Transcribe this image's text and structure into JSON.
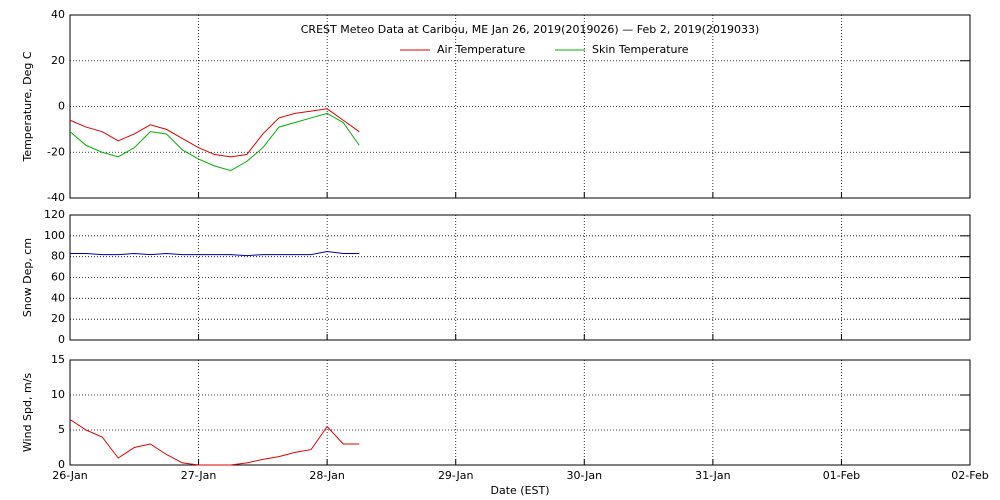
{
  "chart_data": [
    {
      "type": "line",
      "title": "CREST Meteo Data at Caribou, ME   Jan 26, 2019(2019026) — Feb  2, 2019(2019033)",
      "ylabel": "Temperature, Deg C",
      "x": [
        0,
        0.125,
        0.25,
        0.375,
        0.5,
        0.625,
        0.75,
        0.875,
        1.0,
        1.125,
        1.25,
        1.375,
        1.5,
        1.625,
        1.75,
        1.875,
        2.0,
        2.125,
        2.25
      ],
      "series": [
        {
          "name": "Air Temperature",
          "color": "#e00000",
          "values": [
            -6,
            -9,
            -11,
            -15,
            -12,
            -8,
            -10,
            -14,
            -18,
            -21,
            -22,
            -21,
            -12,
            -5,
            -3,
            -2,
            -1,
            -6,
            -11
          ]
        },
        {
          "name": "Skin Temperature",
          "color": "#00b000",
          "values": [
            -11,
            -17,
            -20,
            -22,
            -18,
            -11,
            -12,
            -19,
            -23,
            -26,
            -28,
            -24,
            -18,
            -9,
            -7,
            -5,
            -3,
            -7,
            -17
          ]
        }
      ],
      "xlim": [
        0,
        7
      ],
      "xticks": [
        0,
        1,
        2,
        3,
        4,
        5,
        6,
        7
      ],
      "ylim": [
        -40,
        40
      ],
      "yticks": [
        -40,
        -20,
        0,
        20,
        40
      ],
      "grid": true,
      "legend": "top-center"
    },
    {
      "type": "line",
      "ylabel": "Snow Dep, cm",
      "x": [
        0,
        0.125,
        0.25,
        0.375,
        0.5,
        0.625,
        0.75,
        0.875,
        1.0,
        1.125,
        1.25,
        1.375,
        1.5,
        1.625,
        1.75,
        1.875,
        2.0,
        2.125,
        2.25
      ],
      "series": [
        {
          "name": "Snow Depth",
          "color": "#0000a0",
          "values": [
            83,
            83,
            82,
            82,
            83,
            82,
            83,
            82,
            82,
            82,
            82,
            81,
            82,
            82,
            82,
            82,
            85,
            83,
            83
          ]
        }
      ],
      "xlim": [
        0,
        7
      ],
      "xticks": [
        0,
        1,
        2,
        3,
        4,
        5,
        6,
        7
      ],
      "ylim": [
        0,
        120
      ],
      "yticks": [
        0,
        20,
        40,
        60,
        80,
        100,
        120
      ],
      "grid": true
    },
    {
      "type": "line",
      "ylabel": "Wind Spd, m/s",
      "xlabel": "Date (EST)",
      "x": [
        0,
        0.125,
        0.25,
        0.375,
        0.5,
        0.625,
        0.75,
        0.875,
        1.0,
        1.125,
        1.25,
        1.375,
        1.5,
        1.625,
        1.75,
        1.875,
        2.0,
        2.125,
        2.25
      ],
      "series": [
        {
          "name": "Wind Speed",
          "color": "#e00000",
          "values": [
            6.5,
            5,
            4,
            1,
            2.5,
            3,
            1.5,
            0.3,
            0,
            0,
            0,
            0.3,
            0.8,
            1.2,
            1.8,
            2.2,
            5.5,
            3,
            3
          ]
        }
      ],
      "xlim": [
        0,
        7
      ],
      "xticks": [
        {
          "value": 0,
          "label": "26-Jan"
        },
        {
          "value": 1,
          "label": "27-Jan"
        },
        {
          "value": 2,
          "label": "28-Jan"
        },
        {
          "value": 3,
          "label": "29-Jan"
        },
        {
          "value": 4,
          "label": "30-Jan"
        },
        {
          "value": 5,
          "label": "31-Jan"
        },
        {
          "value": 6,
          "label": "01-Feb"
        },
        {
          "value": 7,
          "label": "02-Feb"
        }
      ],
      "ylim": [
        0,
        15
      ],
      "yticks": [
        0,
        5,
        10,
        15
      ],
      "grid": true
    }
  ]
}
